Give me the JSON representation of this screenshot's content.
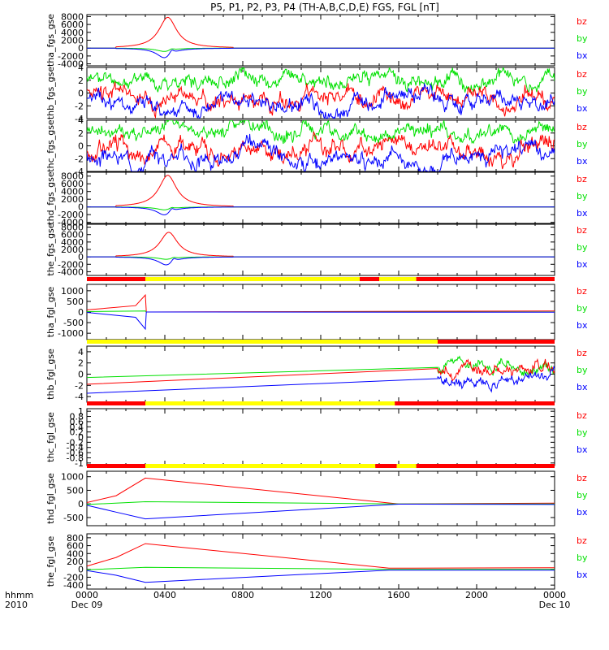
{
  "title": "P5, P1, P2, P3, P4 (TH-A,B,C,D,E) FGS, FGL [nT]",
  "bottom_label": [
    "hhmm",
    "2010"
  ],
  "x_ticks": [
    {
      "label": "0000",
      "sub": "Dec 09"
    },
    {
      "label": "0400",
      "sub": ""
    },
    {
      "label": "0800",
      "sub": ""
    },
    {
      "label": "1200",
      "sub": ""
    },
    {
      "label": "1600",
      "sub": ""
    },
    {
      "label": "2000",
      "sub": ""
    },
    {
      "label": "0000",
      "sub": "Dec 10"
    }
  ],
  "colors": {
    "bx": "#0000ff",
    "by": "#00e000",
    "bz": "#ff0000",
    "bar_yellow": "#ffff00",
    "bar_red": "#ff0000"
  },
  "legend": [
    "bz",
    "by",
    "bx"
  ],
  "chart_data": {
    "type": "line",
    "x_unit": "hours since 2010-12-09 00:00",
    "xlim": [
      0,
      24
    ],
    "panels": [
      {
        "ylabel": "tha_fgs_gse",
        "ylim": [
          -4500,
          8500
        ],
        "yticks": [
          8000,
          6000,
          4000,
          2000,
          0,
          -2000,
          -4000
        ],
        "series": [
          {
            "name": "bz",
            "kind": "peak",
            "start": 1.5,
            "end": 7.5,
            "center": 4.15,
            "amp": 7800,
            "width": 0.55
          },
          {
            "name": "by",
            "kind": "dip",
            "start": 1.5,
            "end": 7.5,
            "center": 4.0,
            "amp": -900,
            "width": 0.5
          },
          {
            "name": "bx",
            "kind": "dip",
            "start": 1.5,
            "end": 7.5,
            "center": 4.0,
            "amp": -2600,
            "width": 0.5
          }
        ]
      },
      {
        "ylabel": "thb_fgs_gse",
        "ylim": [
          -4,
          4
        ],
        "yticks": [
          4,
          2,
          0,
          -2,
          -4
        ],
        "series": [
          {
            "name": "by",
            "kind": "noise",
            "base": 2.2,
            "spread": 1.4,
            "seed": 11
          },
          {
            "name": "bz",
            "kind": "noise",
            "base": -0.5,
            "spread": 1.8,
            "seed": 23
          },
          {
            "name": "bx",
            "kind": "noise",
            "base": -1.6,
            "spread": 1.6,
            "seed": 37
          }
        ]
      },
      {
        "ylabel": "thc_fgs_gse",
        "ylim": [
          -4,
          4
        ],
        "yticks": [
          4,
          2,
          0,
          -2,
          -4
        ],
        "series": [
          {
            "name": "by",
            "kind": "noise",
            "base": 2.0,
            "spread": 1.5,
            "seed": 41
          },
          {
            "name": "bz",
            "kind": "noise",
            "base": -0.3,
            "spread": 1.9,
            "seed": 53
          },
          {
            "name": "bx",
            "kind": "noise",
            "base": -1.8,
            "spread": 1.6,
            "seed": 67
          }
        ]
      },
      {
        "ylabel": "thd_fgs_gse",
        "ylim": [
          -4500,
          9000
        ],
        "yticks": [
          8000,
          6000,
          4000,
          2000,
          0,
          -2000,
          -4000
        ],
        "series": [
          {
            "name": "bz",
            "kind": "peak",
            "start": 1.5,
            "end": 7.5,
            "center": 4.15,
            "amp": 8200,
            "width": 0.55
          },
          {
            "name": "by",
            "kind": "dip",
            "start": 1.5,
            "end": 7.5,
            "center": 4.0,
            "amp": -800,
            "width": 0.5
          },
          {
            "name": "bx",
            "kind": "dip",
            "start": 1.5,
            "end": 7.5,
            "center": 4.0,
            "amp": -2200,
            "width": 0.5
          }
        ]
      },
      {
        "ylabel": "the_fgs_gse",
        "ylim": [
          -5000,
          9000
        ],
        "yticks": [
          8000,
          6000,
          4000,
          2000,
          0,
          -2000,
          -4000
        ],
        "series": [
          {
            "name": "bz",
            "kind": "peak",
            "start": 1.5,
            "end": 7.5,
            "center": 4.2,
            "amp": 6600,
            "width": 0.55
          },
          {
            "name": "by",
            "kind": "dip",
            "start": 1.5,
            "end": 7.5,
            "center": 4.1,
            "amp": -700,
            "width": 0.5
          },
          {
            "name": "bx",
            "kind": "dip",
            "start": 1.5,
            "end": 7.5,
            "center": 4.1,
            "amp": -2300,
            "width": 0.5
          }
        ]
      },
      {
        "ylabel": "tha_fgl_gse",
        "ylim": [
          -1300,
          1300
        ],
        "yticks": [
          1000,
          500,
          0,
          -500,
          -1000
        ],
        "bar": [
          [
            "red",
            0,
            3.0
          ],
          [
            "yellow",
            3.0,
            14.0
          ],
          [
            "red",
            14.0,
            15.0
          ],
          [
            "yellow",
            15.0,
            16.9
          ],
          [
            "red",
            16.9,
            24
          ]
        ],
        "series": [
          {
            "name": "bz",
            "kind": "ramp",
            "points": [
              [
                0,
                100
              ],
              [
                2.5,
                300
              ],
              [
                3.0,
                800
              ],
              [
                3.05,
                0
              ],
              [
                24,
                50
              ]
            ]
          },
          {
            "name": "by",
            "kind": "ramp",
            "points": [
              [
                0,
                20
              ],
              [
                3.0,
                50
              ],
              [
                3.05,
                0
              ],
              [
                24,
                0
              ]
            ]
          },
          {
            "name": "bx",
            "kind": "ramp",
            "points": [
              [
                0,
                -20
              ],
              [
                2.5,
                -250
              ],
              [
                3.0,
                -800
              ],
              [
                3.05,
                0
              ],
              [
                24,
                -10
              ]
            ]
          }
        ]
      },
      {
        "ylabel": "thb_fgl_gse",
        "ylim": [
          -5,
          5
        ],
        "yticks": [
          4,
          2,
          0,
          -2,
          -4
        ],
        "bar": [
          [
            "yellow",
            0,
            18.0
          ],
          [
            "red",
            18.0,
            24
          ]
        ],
        "series": [
          {
            "name": "by",
            "kind": "ramp_noise",
            "points": [
              [
                0,
                -0.6
              ],
              [
                18,
                1.2
              ]
            ],
            "noise_from": 18,
            "base": 1.6,
            "spread": 1.4,
            "seed": 71
          },
          {
            "name": "bz",
            "kind": "ramp_noise",
            "points": [
              [
                0,
                -1.8
              ],
              [
                18,
                1.0
              ]
            ],
            "noise_from": 18,
            "base": 1.0,
            "spread": 1.6,
            "seed": 83
          },
          {
            "name": "bx",
            "kind": "ramp_noise",
            "points": [
              [
                0,
                -3.4
              ],
              [
                18,
                -0.8
              ]
            ],
            "noise_from": 18,
            "base": -1.0,
            "spread": 1.4,
            "seed": 97
          }
        ]
      },
      {
        "ylabel": "thc_fgl_gse",
        "ylim": [
          -1.1,
          1.1
        ],
        "yticks": [
          1.0,
          0.8,
          0.6,
          0.4,
          0.2,
          0.0,
          -0.2,
          -0.4,
          -0.6,
          -0.8,
          -1.0
        ],
        "bar": [
          [
            "red",
            0,
            3.0
          ],
          [
            "yellow",
            3.0,
            15.8
          ],
          [
            "red",
            15.8,
            24
          ]
        ],
        "series": []
      },
      {
        "ylabel": "thd_fgl_gse",
        "ylim": [
          -800,
          1200
        ],
        "yticks": [
          1000,
          500,
          0,
          -500
        ],
        "bar": [
          [
            "red",
            0,
            3.0
          ],
          [
            "yellow",
            3.0,
            14.8
          ],
          [
            "red",
            14.8,
            15.9
          ],
          [
            "yellow",
            15.9,
            16.9
          ],
          [
            "red",
            16.9,
            24
          ]
        ],
        "series": [
          {
            "name": "bz",
            "kind": "ramp",
            "points": [
              [
                0,
                50
              ],
              [
                1.5,
                300
              ],
              [
                3.0,
                950
              ],
              [
                16.0,
                0
              ],
              [
                24,
                30
              ]
            ]
          },
          {
            "name": "by",
            "kind": "ramp",
            "points": [
              [
                0,
                -20
              ],
              [
                3.0,
                80
              ],
              [
                16.0,
                0
              ],
              [
                24,
                0
              ]
            ]
          },
          {
            "name": "bx",
            "kind": "ramp",
            "points": [
              [
                0,
                -50
              ],
              [
                1.5,
                -300
              ],
              [
                3.0,
                -550
              ],
              [
                16.0,
                -10
              ],
              [
                24,
                -20
              ]
            ]
          }
        ]
      },
      {
        "ylabel": "the_fgl_gse",
        "ylim": [
          -500,
          900
        ],
        "yticks": [
          800,
          600,
          400,
          200,
          0,
          -200,
          -400
        ],
        "series": [
          {
            "name": "bz",
            "kind": "ramp",
            "points": [
              [
                0,
                80
              ],
              [
                1.5,
                300
              ],
              [
                3.0,
                650
              ],
              [
                15.5,
                30
              ],
              [
                24,
                40
              ]
            ]
          },
          {
            "name": "by",
            "kind": "ramp",
            "points": [
              [
                0,
                -10
              ],
              [
                3.0,
                50
              ],
              [
                15.5,
                0
              ],
              [
                24,
                0
              ]
            ]
          },
          {
            "name": "bx",
            "kind": "ramp",
            "points": [
              [
                0,
                -30
              ],
              [
                1.5,
                -150
              ],
              [
                3.0,
                -330
              ],
              [
                15.5,
                -20
              ],
              [
                24,
                -20
              ]
            ]
          }
        ]
      }
    ]
  }
}
